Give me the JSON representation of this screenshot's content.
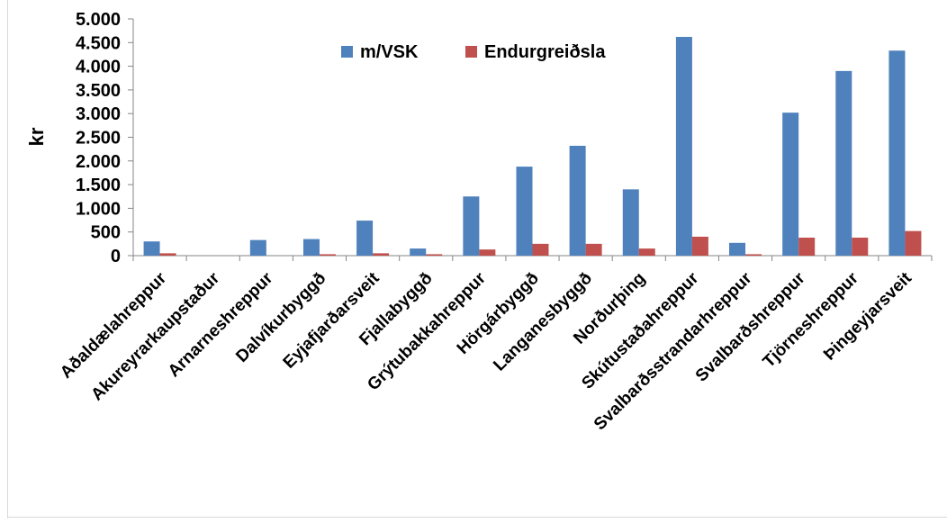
{
  "chart_data": {
    "type": "bar",
    "ylabel": "kr",
    "xlabel": "",
    "title": "",
    "ylim": [
      0,
      5000
    ],
    "yticks": [
      0,
      500,
      1000,
      1500,
      2000,
      2500,
      3000,
      3500,
      4000,
      4500,
      5000
    ],
    "ytick_labels": [
      "0",
      "500",
      "1.000",
      "1.500",
      "2.000",
      "2.500",
      "3.000",
      "3.500",
      "4.000",
      "4.500",
      "5.000"
    ],
    "categories": [
      "Aðaldælahreppur",
      "Akureyrarkaupstaður",
      "Arnarneshreppur",
      "Dalvíkurbyggð",
      "Eyjafjarðarsveit",
      "Fjallabyggð",
      "Grýtubakkahreppur",
      "Hörgárbyggð",
      "Langanesbyggð",
      "Norðurþing",
      "Skútustaðahreppur",
      "Svalbarðsstrandarhreppur",
      "Svalbarðshreppur",
      "Tjörneshreppur",
      "Þingeyjarsveit"
    ],
    "series": [
      {
        "name": "m/VSK",
        "color": "#4f81bd",
        "values": [
          300,
          0,
          330,
          350,
          740,
          150,
          1250,
          1880,
          2320,
          1400,
          4620,
          270,
          3020,
          3900,
          4330
        ]
      },
      {
        "name": "Endurgreiðsla",
        "color": "#c0504d",
        "values": [
          50,
          0,
          0,
          30,
          50,
          30,
          130,
          250,
          250,
          150,
          400,
          30,
          380,
          380,
          520
        ]
      }
    ],
    "legend": "top-center",
    "grid": false
  }
}
